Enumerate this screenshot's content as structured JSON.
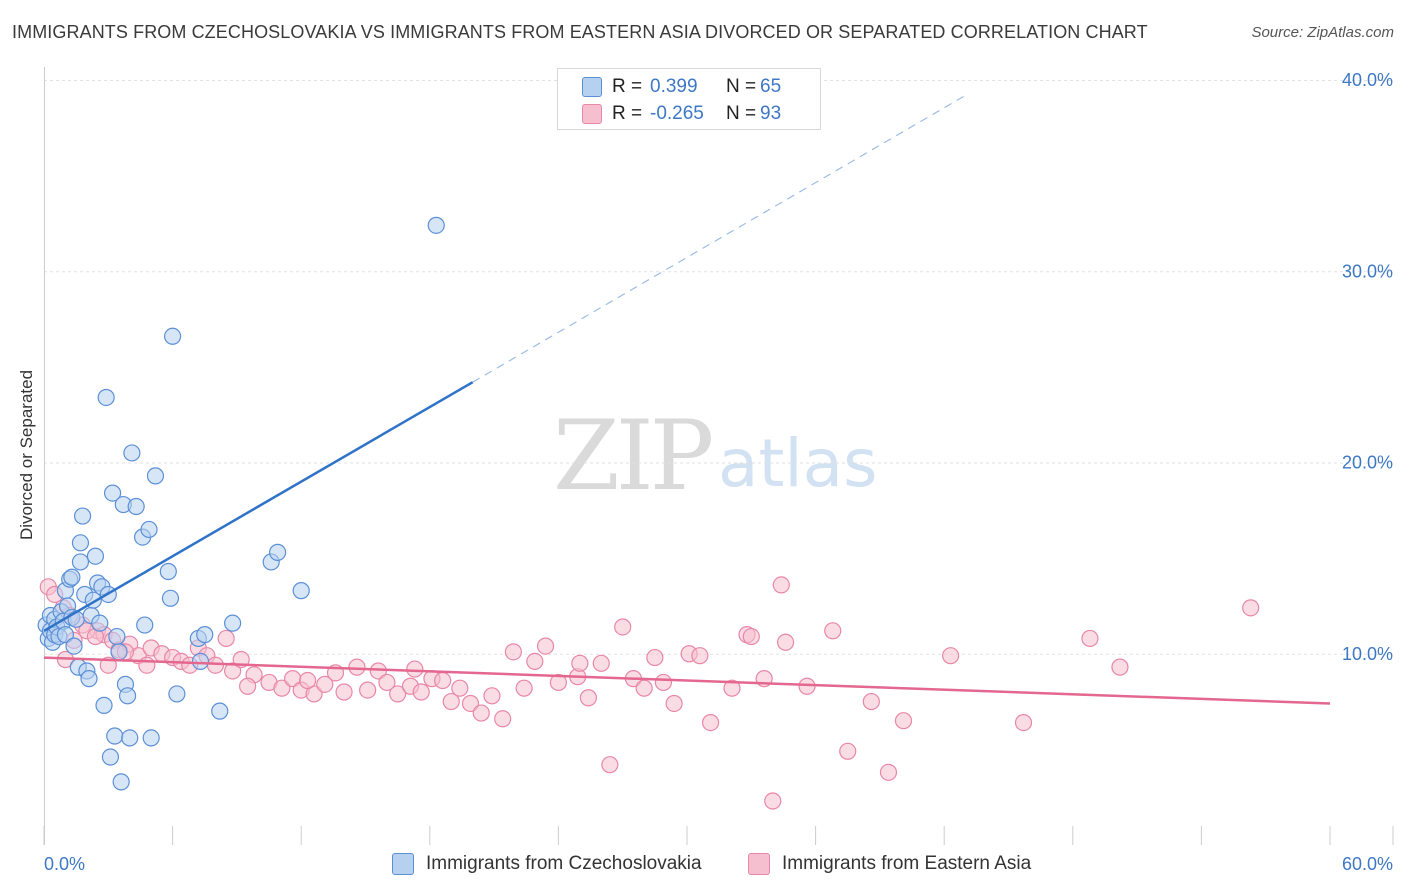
{
  "title": "IMMIGRANTS FROM CZECHOSLOVAKIA VS IMMIGRANTS FROM EASTERN ASIA DIVORCED OR SEPARATED CORRELATION CHART",
  "source": "Source: ZipAtlas.com",
  "watermark": {
    "zip": "ZIP",
    "atlas": "atlas"
  },
  "legend": {
    "rows": [
      {
        "r_label": "R =",
        "r_value": "0.399",
        "n_label": "N =",
        "n_value": "65"
      },
      {
        "r_label": "R =",
        "r_value": "-0.265",
        "n_label": "N =",
        "n_value": "93"
      }
    ]
  },
  "colors": {
    "blue_fill": "#b6d1f0",
    "blue_stroke": "#5b8fd6",
    "blue_line": "#2f73c9",
    "pink_fill": "#f6bfd0",
    "pink_stroke": "#e887a8",
    "pink_line": "#e4678f",
    "tick_label": "#3d78c4",
    "grid": "#e2e2e2"
  },
  "chart_data": {
    "type": "scatter",
    "title": "IMMIGRANTS FROM CZECHOSLOVAKIA VS IMMIGRANTS FROM EASTERN ASIA DIVORCED OR SEPARATED CORRELATION CHART",
    "xlabel": "",
    "ylabel": "Divorced or Separated",
    "xlim": [
      0,
      60
    ],
    "ylim": [
      0,
      40
    ],
    "x_tick_labels": [
      "0.0%",
      "60.0%"
    ],
    "y_ticks": [
      10,
      20,
      30,
      40
    ],
    "y_tick_labels": [
      "10.0%",
      "20.0%",
      "30.0%",
      "40.0%"
    ],
    "grid": true,
    "legend_position": "top-center",
    "series": [
      {
        "name": "Immigrants from Czechoslovakia",
        "color": "#5b8fd6",
        "r": 0.399,
        "n": 65,
        "trend": {
          "x": [
            0,
            20
          ],
          "y": [
            11.2,
            24.2
          ],
          "dashed_to": [
            43,
            39.2
          ]
        },
        "points": [
          [
            0.1,
            11.5
          ],
          [
            0.2,
            10.8
          ],
          [
            0.3,
            11.2
          ],
          [
            0.3,
            12.0
          ],
          [
            0.4,
            10.6
          ],
          [
            0.5,
            11.0
          ],
          [
            0.5,
            11.8
          ],
          [
            0.6,
            11.4
          ],
          [
            0.7,
            10.9
          ],
          [
            0.8,
            12.2
          ],
          [
            0.9,
            11.7
          ],
          [
            1.0,
            13.3
          ],
          [
            1.0,
            11.0
          ],
          [
            1.1,
            12.5
          ],
          [
            1.2,
            13.9
          ],
          [
            1.3,
            14.0
          ],
          [
            1.3,
            11.9
          ],
          [
            1.4,
            10.4
          ],
          [
            1.5,
            11.8
          ],
          [
            1.6,
            9.3
          ],
          [
            1.7,
            15.8
          ],
          [
            1.7,
            14.8
          ],
          [
            1.8,
            17.2
          ],
          [
            1.9,
            13.1
          ],
          [
            2.0,
            9.1
          ],
          [
            2.1,
            8.7
          ],
          [
            2.2,
            12.0
          ],
          [
            2.3,
            12.8
          ],
          [
            2.4,
            15.1
          ],
          [
            2.5,
            13.7
          ],
          [
            2.6,
            11.6
          ],
          [
            2.7,
            13.5
          ],
          [
            2.8,
            7.3
          ],
          [
            2.9,
            23.4
          ],
          [
            3.0,
            13.1
          ],
          [
            3.1,
            4.6
          ],
          [
            3.2,
            18.4
          ],
          [
            3.3,
            5.7
          ],
          [
            3.4,
            10.9
          ],
          [
            3.5,
            10.1
          ],
          [
            3.6,
            3.3
          ],
          [
            3.7,
            17.8
          ],
          [
            3.8,
            8.4
          ],
          [
            3.9,
            7.8
          ],
          [
            4.0,
            5.6
          ],
          [
            4.1,
            20.5
          ],
          [
            4.3,
            17.7
          ],
          [
            4.6,
            16.1
          ],
          [
            4.7,
            11.5
          ],
          [
            4.9,
            16.5
          ],
          [
            5.0,
            5.6
          ],
          [
            5.2,
            19.3
          ],
          [
            5.8,
            14.3
          ],
          [
            5.9,
            12.9
          ],
          [
            6.0,
            26.6
          ],
          [
            6.2,
            7.9
          ],
          [
            7.2,
            10.8
          ],
          [
            7.3,
            9.6
          ],
          [
            7.5,
            11.0
          ],
          [
            8.2,
            7.0
          ],
          [
            8.8,
            11.6
          ],
          [
            10.6,
            14.8
          ],
          [
            10.9,
            15.3
          ],
          [
            12.0,
            13.3
          ],
          [
            18.3,
            32.4
          ]
        ]
      },
      {
        "name": "Immigrants from Eastern Asia",
        "color": "#e887a8",
        "r": -0.265,
        "n": 93,
        "trend": {
          "x": [
            0,
            60
          ],
          "y": [
            9.8,
            7.4
          ]
        },
        "points": [
          [
            0.2,
            13.5
          ],
          [
            0.5,
            13.1
          ],
          [
            0.9,
            12.4
          ],
          [
            1.2,
            12.0
          ],
          [
            1.8,
            11.5
          ],
          [
            2.5,
            11.2
          ],
          [
            2.8,
            11.0
          ],
          [
            3.2,
            10.7
          ],
          [
            3.5,
            10.2
          ],
          [
            4.0,
            10.5
          ],
          [
            4.4,
            9.9
          ],
          [
            5.0,
            10.3
          ],
          [
            5.5,
            10.0
          ],
          [
            6.0,
            9.8
          ],
          [
            6.4,
            9.6
          ],
          [
            7.2,
            10.3
          ],
          [
            7.6,
            9.9
          ],
          [
            8.0,
            9.4
          ],
          [
            8.5,
            10.8
          ],
          [
            8.8,
            9.1
          ],
          [
            9.2,
            9.7
          ],
          [
            9.8,
            8.9
          ],
          [
            10.5,
            8.5
          ],
          [
            11.1,
            8.2
          ],
          [
            11.6,
            8.7
          ],
          [
            12.0,
            8.1
          ],
          [
            12.6,
            7.9
          ],
          [
            13.1,
            8.4
          ],
          [
            13.6,
            9.0
          ],
          [
            14.0,
            8.0
          ],
          [
            14.6,
            9.3
          ],
          [
            15.1,
            8.1
          ],
          [
            15.6,
            9.1
          ],
          [
            16.0,
            8.5
          ],
          [
            16.5,
            7.9
          ],
          [
            17.1,
            8.3
          ],
          [
            17.6,
            8.0
          ],
          [
            18.1,
            8.7
          ],
          [
            18.6,
            8.6
          ],
          [
            19.0,
            7.5
          ],
          [
            19.4,
            8.2
          ],
          [
            19.9,
            7.4
          ],
          [
            20.4,
            6.9
          ],
          [
            20.9,
            7.8
          ],
          [
            21.4,
            6.6
          ],
          [
            21.9,
            10.1
          ],
          [
            22.4,
            8.2
          ],
          [
            22.9,
            9.6
          ],
          [
            23.4,
            10.4
          ],
          [
            24.0,
            8.5
          ],
          [
            24.9,
            8.8
          ],
          [
            25.4,
            7.7
          ],
          [
            26.0,
            9.5
          ],
          [
            26.4,
            4.2
          ],
          [
            27.0,
            11.4
          ],
          [
            27.5,
            8.7
          ],
          [
            28.0,
            8.2
          ],
          [
            28.5,
            9.8
          ],
          [
            28.9,
            8.5
          ],
          [
            29.4,
            7.4
          ],
          [
            30.1,
            10.0
          ],
          [
            30.6,
            9.9
          ],
          [
            31.1,
            6.4
          ],
          [
            32.1,
            8.2
          ],
          [
            32.8,
            11.0
          ],
          [
            33.6,
            8.7
          ],
          [
            34.0,
            2.3
          ],
          [
            34.6,
            10.6
          ],
          [
            35.6,
            8.3
          ],
          [
            36.8,
            11.2
          ],
          [
            37.5,
            4.9
          ],
          [
            38.6,
            7.5
          ],
          [
            39.4,
            3.8
          ],
          [
            40.1,
            6.5
          ],
          [
            42.3,
            9.9
          ],
          [
            45.7,
            6.4
          ],
          [
            48.8,
            10.8
          ],
          [
            50.2,
            9.3
          ],
          [
            56.3,
            12.4
          ],
          [
            1.0,
            9.7
          ],
          [
            1.4,
            10.7
          ],
          [
            2.0,
            11.2
          ],
          [
            2.4,
            10.9
          ],
          [
            3.0,
            9.4
          ],
          [
            3.8,
            10.1
          ],
          [
            4.8,
            9.4
          ],
          [
            6.8,
            9.4
          ],
          [
            9.5,
            8.3
          ],
          [
            12.3,
            8.6
          ],
          [
            17.3,
            9.2
          ],
          [
            25.0,
            9.5
          ],
          [
            33.0,
            10.9
          ],
          [
            34.4,
            13.6
          ]
        ]
      }
    ]
  }
}
